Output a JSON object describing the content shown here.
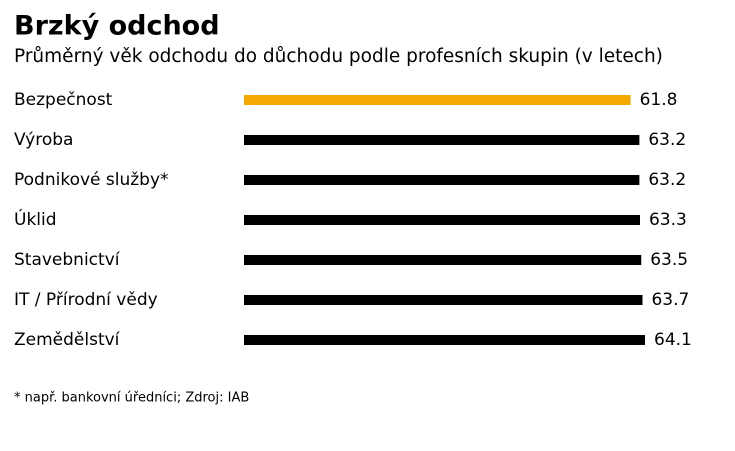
{
  "chart_data": {
    "type": "bar",
    "orientation": "horizontal",
    "title": "Brzký odchod",
    "subtitle": "Průměrný věk odchodu do důchodu podle profesních skupin (v letech)",
    "categories": [
      "Bezpečnost",
      "Výroba",
      "Podnikové služby*",
      "Úklid",
      "Stavebnictví",
      "IT / Přírodní vědy",
      "Zemědělství"
    ],
    "values": [
      61.8,
      63.2,
      63.2,
      63.3,
      63.5,
      63.7,
      64.1
    ],
    "colors": [
      "#f5a800",
      "#000000",
      "#000000",
      "#000000",
      "#000000",
      "#000000",
      "#000000"
    ],
    "note": "* např. bankovní úředníci; Zdroj: IAB"
  }
}
